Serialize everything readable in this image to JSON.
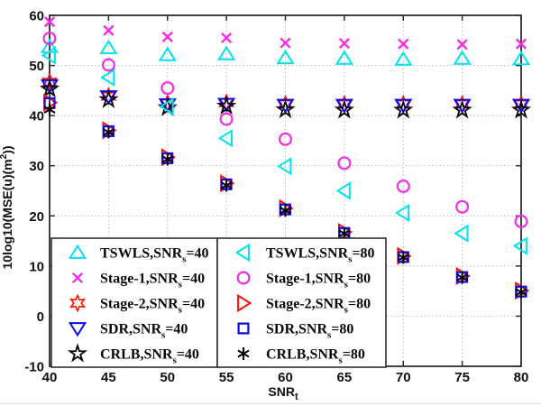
{
  "chart_data": {
    "type": "scatter",
    "x": [
      40,
      45,
      50,
      55,
      60,
      65,
      70,
      75,
      80
    ],
    "xlim": [
      40,
      80
    ],
    "ylim": [
      -10,
      60
    ],
    "xticks": [
      40,
      45,
      50,
      55,
      60,
      65,
      70,
      75,
      80
    ],
    "yticks": [
      -10,
      0,
      10,
      20,
      30,
      40,
      50,
      60
    ],
    "grid": "dotted",
    "grid_color": "#a8a8a8",
    "axis_color": "#2e2e2e",
    "xlabel": "SNR_t",
    "xlabel_parts": {
      "pre": "SNR",
      "sub": "t"
    },
    "ylabel": "10log10(MSE(u)(m^2))",
    "ylabel_parts": {
      "pre": "10log10(MSE(u)(m",
      "sup": "2",
      "post": "))"
    },
    "series": [
      {
        "id": "tswls-snrs40",
        "name": "TSWLS,SNR_s=40",
        "label_pre": "TSWLS,SNR",
        "label_sub": "s",
        "label_post": "=40",
        "marker": "triangle-up",
        "color": "#00e2ee",
        "values": [
          53.7,
          53.5,
          52.1,
          52.3,
          51.5,
          51.4,
          51.2,
          51.4,
          51.3
        ]
      },
      {
        "id": "stage1-snrs40",
        "name": "Stage-1,SNR_s=40",
        "label_pre": "Stage-1,SNR",
        "label_sub": "s",
        "label_post": "=40",
        "marker": "x-mark",
        "color": "#f42ee0",
        "values": [
          58.7,
          57.0,
          55.7,
          55.5,
          54.5,
          54.4,
          54.3,
          54.2,
          54.3
        ]
      },
      {
        "id": "stage2-snrs40",
        "name": "Stage-2,SNR_s=40",
        "label_pre": "Stage-2,SNR",
        "label_sub": "s",
        "label_post": "=40",
        "marker": "hexagram",
        "color": "#ff0f00",
        "values": [
          46.7,
          43.9,
          42.5,
          42.6,
          42.3,
          42.3,
          42.3,
          42.3,
          42.3
        ]
      },
      {
        "id": "sdr-snrs40",
        "name": "SDR,SNR_s=40",
        "label_pre": "SDR,SNR",
        "label_sub": "s",
        "label_post": "=40",
        "marker": "triangle-down",
        "color": "#0808ee",
        "values": [
          46.0,
          43.8,
          42.2,
          42.3,
          42.1,
          42.1,
          42.1,
          42.1,
          42.1
        ]
      },
      {
        "id": "crlb-snrs40",
        "name": "CRLB,SNR_s=40",
        "label_pre": "CRLB,SNR",
        "label_sub": "s",
        "label_post": "=40",
        "marker": "pentagram",
        "color": "#000000",
        "values": [
          45.3,
          43.2,
          41.6,
          41.9,
          41.2,
          41.1,
          41.1,
          41.1,
          41.1
        ]
      },
      {
        "id": "tswls-snrs80",
        "name": "TSWLS,SNR_s=80",
        "label_pre": "TSWLS,SNR",
        "label_sub": "s",
        "label_post": "=80",
        "marker": "triangle-left",
        "color": "#00e2ee",
        "values": [
          52.0,
          47.6,
          41.8,
          35.5,
          29.9,
          25.0,
          20.6,
          16.5,
          14.0
        ]
      },
      {
        "id": "stage1-snrs80",
        "name": "Stage-1,SNR_s=80",
        "label_pre": "Stage-1,SNR",
        "label_sub": "s",
        "label_post": "=80",
        "marker": "circle",
        "color": "#f42ee0",
        "values": [
          55.4,
          50.1,
          45.5,
          39.3,
          35.3,
          30.5,
          25.9,
          21.8,
          18.9
        ]
      },
      {
        "id": "stage2-snrs80",
        "name": "Stage-2,SNR_s=80",
        "label_pre": "Stage-2,SNR",
        "label_sub": "s",
        "label_post": "=80",
        "marker": "triangle-right",
        "color": "#ff0f00",
        "values": [
          42.6,
          37.1,
          31.7,
          26.5,
          21.5,
          16.8,
          12.0,
          8.0,
          5.1
        ]
      },
      {
        "id": "sdr-snrs80",
        "name": "SDR,SNR_s=80",
        "label_pre": "SDR,SNR",
        "label_sub": "s",
        "label_post": "=80",
        "marker": "square",
        "color": "#0808ee",
        "values": [
          42.5,
          36.9,
          31.5,
          26.3,
          21.3,
          16.6,
          11.8,
          7.8,
          4.9
        ]
      },
      {
        "id": "crlb-snrs80",
        "name": "CRLB,SNR_s=80",
        "label_pre": "CRLB,SNR",
        "label_sub": "s",
        "label_post": "=80",
        "marker": "asterisk",
        "color": "#000000",
        "values": [
          41.2,
          36.7,
          31.3,
          26.1,
          21.1,
          16.5,
          11.7,
          7.7,
          4.8
        ]
      }
    ],
    "legend": {
      "position": "bottom-inside",
      "boxes": [
        [
          0,
          1,
          2,
          3,
          4
        ],
        [
          5,
          6,
          7,
          8,
          9
        ]
      ]
    }
  }
}
